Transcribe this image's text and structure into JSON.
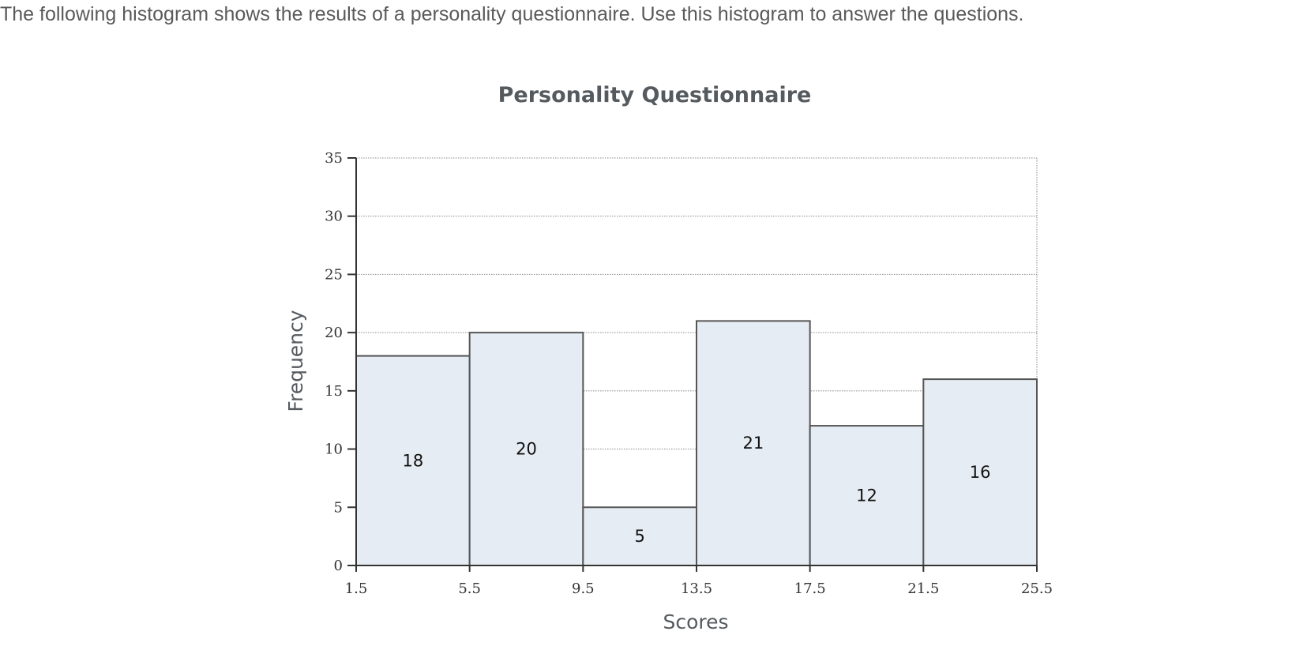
{
  "instructions": "The following histogram shows the results of a personality questionnaire. Use this histogram to answer the questions.",
  "chart_data": {
    "type": "bar",
    "title": "Personality Questionnaire",
    "xlabel": "Scores",
    "ylabel": "Frequency",
    "bin_edges": [
      1.5,
      5.5,
      9.5,
      13.5,
      17.5,
      21.5,
      25.5
    ],
    "x_tick_labels": [
      "1.5",
      "5.5",
      "9.5",
      "13.5",
      "17.5",
      "21.5",
      "25.5"
    ],
    "values": [
      18,
      20,
      5,
      21,
      12,
      16
    ],
    "ylim": [
      0,
      35
    ],
    "y_ticks": [
      0,
      5,
      10,
      15,
      20,
      25,
      30,
      35
    ],
    "grid": "horizontal dotted",
    "bar_fill": "#e6ecf3",
    "bar_stroke": "#555555"
  }
}
